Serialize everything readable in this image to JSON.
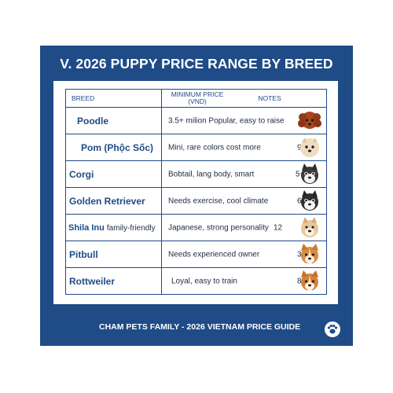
{
  "title": "V. 2026 PUPPY PRICE RANGE BY BREED",
  "headers": {
    "breed": "BREED",
    "min_price_line1": "MINIMUM PRICE",
    "min_price_line2": "(VND)",
    "notes": "NOTES"
  },
  "rows": [
    {
      "breed": "Poodle",
      "info": "3.5+ milion  Popular, easy to raise",
      "count": "",
      "dog_icon": "red-poodle-icon"
    },
    {
      "breed": "Pom (Phộc Sốc)",
      "info": "Mini, rare colors cost more",
      "count": "9+",
      "dog_icon": "cream-pom-icon"
    },
    {
      "breed": "Corgi",
      "info": "Bobtail, lang body, smart",
      "count": "5+",
      "dog_icon": "husky-puppy-icon"
    },
    {
      "breed": "Golden Retriever",
      "info": "Needs exercise, cool climate",
      "count": "6+",
      "dog_icon": "husky-puppy-icon"
    },
    {
      "breed": "Shila Inu",
      "breed_note": "family-friendly",
      "info": "Japanese, strong personality",
      "count": "12",
      "dog_icon": "shiba-puppy-icon"
    },
    {
      "breed": "Pitbull",
      "info": "Needs experienced owner",
      "count": "3+",
      "dog_icon": "corgi-puppy-icon"
    },
    {
      "breed": "Rottweiler",
      "info": "Loyal, easy to train",
      "count": "8+",
      "dog_icon": "corgi-puppy-icon"
    }
  ],
  "footer": "CHAM PETS FAMILY - 2026 VIETNAM PRICE GUIDE",
  "colors": {
    "navy": "#1f4b87",
    "text": "#1f2a44",
    "white": "#ffffff"
  }
}
